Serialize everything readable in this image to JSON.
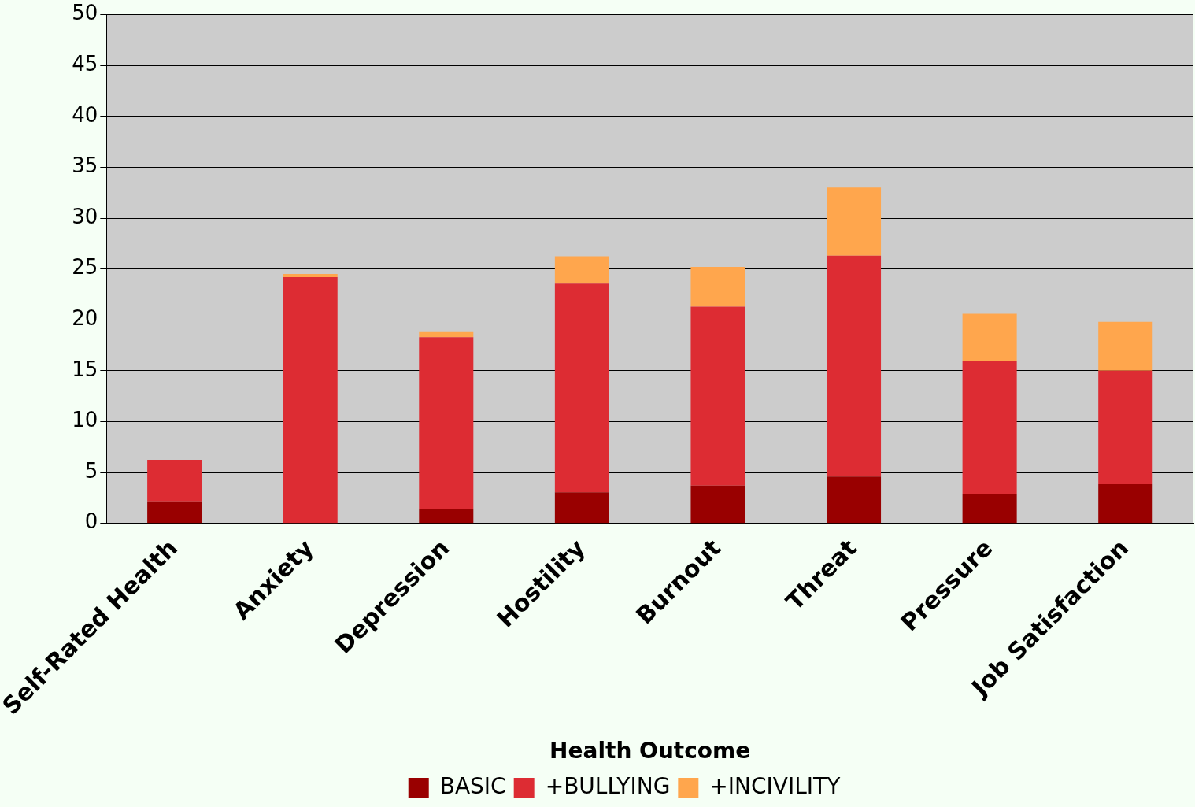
{
  "chart_data": {
    "type": "bar",
    "stacked": true,
    "xlabel": "Health Outcome",
    "categories": [
      "Self-Rated Health",
      "Anxiety",
      "Depression",
      "Hostility",
      "Burnout",
      "Threat",
      "Pressure",
      "Job Satisfaction"
    ],
    "series": [
      {
        "name": "BASIC",
        "color": "#990000",
        "values": [
          2.15,
          0,
          1.4,
          3.05,
          3.7,
          4.6,
          2.9,
          3.85
        ]
      },
      {
        "name": "+BULLYING",
        "color": "#dd2c33",
        "values": [
          4.1,
          24.2,
          16.9,
          20.5,
          17.6,
          21.7,
          13.1,
          11.15
        ]
      },
      {
        "name": "+INCIVILITY",
        "color": "#ffa64d",
        "values": [
          0,
          0.3,
          0.5,
          2.7,
          3.9,
          6.7,
          4.6,
          4.8
        ]
      }
    ],
    "ylim": [
      0,
      50
    ],
    "yticks": [
      0,
      5,
      10,
      15,
      20,
      25,
      30,
      35,
      40,
      45,
      50
    ],
    "grid": "y",
    "legend": "bottom"
  }
}
